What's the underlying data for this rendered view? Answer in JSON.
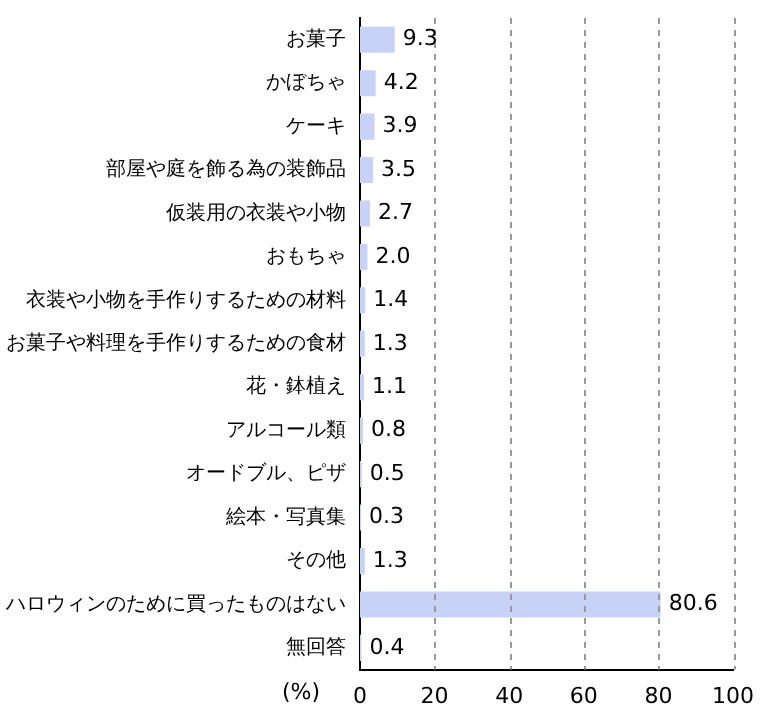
{
  "chart_data": {
    "type": "bar",
    "orientation": "horizontal",
    "xlabel": "(%)",
    "categories": [
      "お菓子",
      "かぼちゃ",
      "ケーキ",
      "部屋や庭を飾る為の装飾品",
      "仮装用の衣装や小物",
      "おもちゃ",
      "衣装や小物を手作りするための材料",
      "お菓子や料理を手作りするための食材",
      "花・鉢植え",
      "アルコール類",
      "オードブル、ピザ",
      "絵本・写真集",
      "その他",
      "ハロウィンのために買ったものはない",
      "無回答"
    ],
    "values": [
      9.3,
      4.2,
      3.9,
      3.5,
      2.7,
      2.0,
      1.4,
      1.3,
      1.1,
      0.8,
      0.5,
      0.3,
      1.3,
      80.6,
      0.4
    ],
    "value_labels": [
      "9.3",
      "4.2",
      "3.9",
      "3.5",
      "2.7",
      "2.0",
      "1.4",
      "1.3",
      "1.1",
      "0.8",
      "0.5",
      "0.3",
      "1.3",
      "80.6",
      "0.4"
    ],
    "color": "#c8d2f6",
    "xlim": [
      0,
      100
    ],
    "xticks": [
      0,
      20,
      40,
      60,
      80,
      100
    ],
    "grid": "x"
  }
}
